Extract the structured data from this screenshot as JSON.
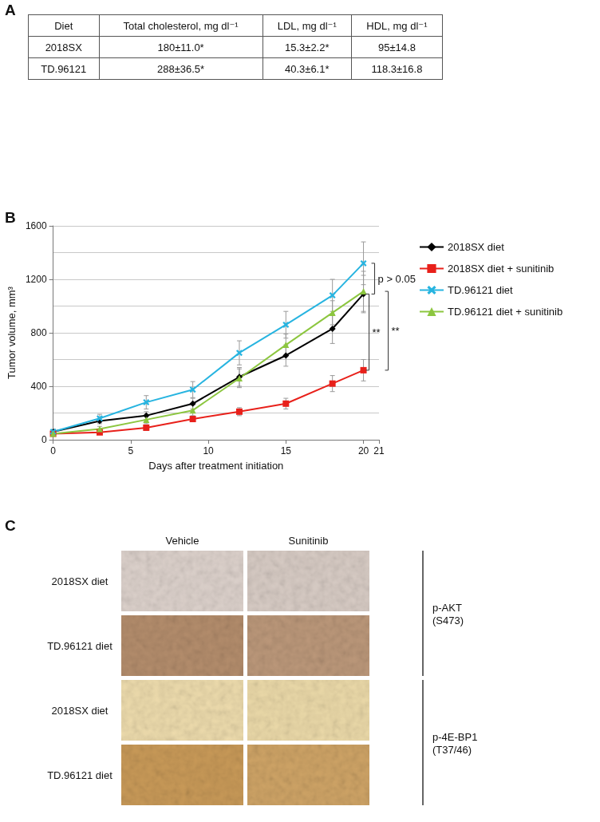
{
  "panel_labels": [
    "A",
    "B",
    "C"
  ],
  "table": {
    "header": [
      "Diet",
      "Total cholesterol, mg dl⁻¹",
      "LDL, mg dl⁻¹",
      "HDL, mg dl⁻¹"
    ],
    "rows": [
      [
        "2018SX",
        "180±11.0*",
        "15.3±2.2*",
        "95±14.8"
      ],
      [
        "TD.96121",
        "288±36.5*",
        "40.3±6.1*",
        "118.3±16.8"
      ]
    ]
  },
  "chart_data": {
    "type": "line",
    "x": [
      0,
      3,
      6,
      9,
      12,
      15,
      18,
      20
    ],
    "xlabel": "Days after treatment initiation",
    "ylabel": "Tumor volume, mm³",
    "xlim": [
      0,
      21
    ],
    "xticks": [
      0,
      5,
      10,
      15,
      20
    ],
    "ylim": [
      0,
      1600
    ],
    "yticks": [
      0,
      400,
      800,
      1200,
      1600
    ],
    "grid": true,
    "legend": "right",
    "series": [
      {
        "name": "2018SX diet",
        "color": "#000000",
        "marker": "diamond",
        "values": [
          60,
          140,
          180,
          270,
          470,
          630,
          830,
          1090
        ],
        "errors": [
          10,
          20,
          30,
          40,
          70,
          80,
          110,
          140
        ]
      },
      {
        "name": "2018SX diet + sunitinib",
        "color": "#e8201a",
        "marker": "square",
        "values": [
          45,
          55,
          90,
          155,
          210,
          270,
          420,
          520
        ],
        "errors": [
          10,
          15,
          20,
          20,
          30,
          40,
          60,
          80
        ]
      },
      {
        "name": "TD.96121 diet",
        "color": "#27b4e0",
        "marker": "x",
        "values": [
          60,
          160,
          280,
          375,
          650,
          860,
          1080,
          1320
        ],
        "errors": [
          20,
          30,
          50,
          60,
          90,
          100,
          120,
          160
        ]
      },
      {
        "name": "TD.96121 diet + sunitinib",
        "color": "#8cc63f",
        "marker": "triangle",
        "values": [
          45,
          80,
          150,
          220,
          460,
          710,
          950,
          1110
        ],
        "errors": [
          10,
          20,
          30,
          40,
          70,
          80,
          90,
          150
        ]
      }
    ],
    "annotations": [
      {
        "text": "p > 0.05",
        "between": [
          "TD.96121 diet",
          "2018SX diet"
        ]
      },
      {
        "text": "**",
        "between": [
          "2018SX diet",
          "2018SX diet + sunitinib"
        ]
      },
      {
        "text": "**",
        "between": [
          "TD.96121 diet + sunitinib",
          "2018SX diet + sunitinib"
        ]
      }
    ]
  },
  "ihc_panel": {
    "columns": [
      "Vehicle",
      "Sunitinib"
    ],
    "groups": [
      {
        "label_lines": [
          "p-AKT",
          "(S473)"
        ],
        "rows": [
          "2018SX diet",
          "TD.96121 diet"
        ]
      },
      {
        "label_lines": [
          "p-4E-BP1",
          "(T37/46)"
        ],
        "rows": [
          "2018SX diet",
          "TD.96121 diet"
        ]
      }
    ]
  }
}
